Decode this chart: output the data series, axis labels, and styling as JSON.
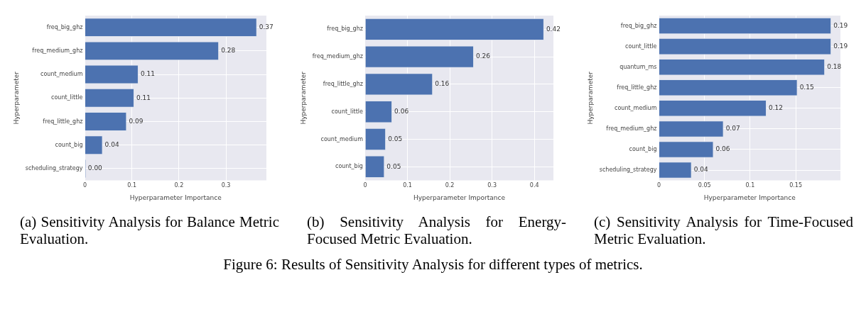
{
  "chart_data": [
    {
      "type": "bar",
      "orientation": "horizontal",
      "title": "(a) Sensitivity Analysis for Balance Metric Evaluation.",
      "xlabel": "Hyperparameter Importance",
      "ylabel": "Hyperparameter",
      "categories": [
        "freq_big_ghz",
        "freq_medium_ghz",
        "count_medium",
        "count_little",
        "freq_little_ghz",
        "count_big",
        "scheduling_strategy"
      ],
      "values": [
        0.366,
        0.285,
        0.114,
        0.105,
        0.089,
        0.038,
        0.002
      ],
      "value_labels": [
        "0.37",
        "0.28",
        "0.11",
        "0.11",
        "0.09",
        "0.04",
        "0.00"
      ],
      "color": "#4c72b0",
      "xlim": [
        0,
        0.386
      ],
      "xticks": [
        0,
        0.1,
        0.2,
        0.3
      ],
      "grid": true,
      "annotations": [
        "Figure 6: Results of Sensitivity Analysis for different types of metrics."
      ]
    },
    {
      "type": "bar",
      "orientation": "horizontal",
      "title": "(b) Sensitivity Analysis for Energy-Focused Metric Evaluation.",
      "xlabel": "Hyperparameter Importance",
      "ylabel": "Hyperparameter",
      "categories": [
        "freq_big_ghz",
        "freq_medium_ghz",
        "freq_little_ghz",
        "count_little",
        "count_medium",
        "count_big"
      ],
      "values": [
        0.423,
        0.257,
        0.16,
        0.064,
        0.049,
        0.046
      ],
      "value_labels": [
        "0.42",
        "0.26",
        "0.16",
        "0.06",
        "0.05",
        "0.05"
      ],
      "color": "#4c72b0",
      "xlim": [
        0,
        0.445
      ],
      "xticks": [
        0,
        0.1,
        0.2,
        0.3,
        0.4
      ],
      "grid": true
    },
    {
      "type": "bar",
      "orientation": "horizontal",
      "title": "(c) Sensitivity Analysis for Time-Focused Metric Evaluation.",
      "xlabel": "Hyperparameter Importance",
      "ylabel": "Hyperparameter",
      "categories": [
        "freq_big_ghz",
        "count_little",
        "quantum_ms",
        "freq_little_ghz",
        "count_medium",
        "freq_medium_ghz",
        "count_big",
        "scheduling_strategy"
      ],
      "values": [
        0.189,
        0.189,
        0.182,
        0.152,
        0.118,
        0.071,
        0.06,
        0.036
      ],
      "value_labels": [
        "0.19",
        "0.19",
        "0.18",
        "0.15",
        "0.12",
        "0.07",
        "0.06",
        "0.04"
      ],
      "color": "#4c72b0",
      "xlim": [
        0,
        0.199
      ],
      "xticks": [
        0,
        0.05,
        0.1,
        0.15
      ],
      "grid": true
    }
  ]
}
